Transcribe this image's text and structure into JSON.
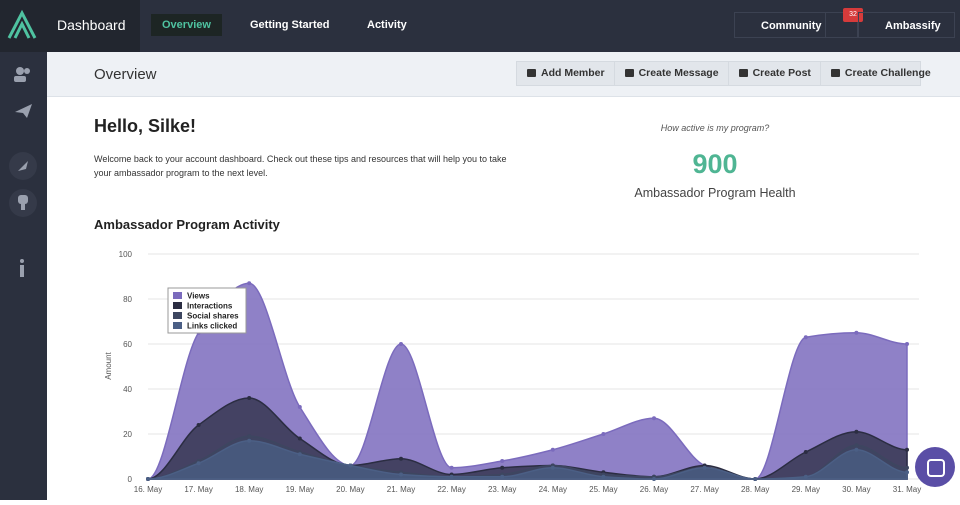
{
  "topbar": {
    "brand": "Dashboard",
    "tabs": [
      "Overview",
      "Getting Started",
      "Activity"
    ],
    "community": "Community",
    "notifications": "32",
    "user": "Ambassify"
  },
  "subheader": {
    "title": "Overview",
    "actions": [
      "Add Member",
      "Create Message",
      "Create Post",
      "Create Challenge"
    ]
  },
  "welcome": {
    "title": "Hello, Silke!",
    "text": "Welcome back to your account dashboard. Check out these tips and resources that will help you to take your ambassador program to the next level."
  },
  "health": {
    "question": "How active is my program?",
    "score": "900",
    "label": "Ambassador Program Health"
  },
  "chart_data": {
    "type": "area",
    "title": "Ambassador Program Activity",
    "y_label": "Amount",
    "categories": [
      "16. May",
      "17. May",
      "18. May",
      "19. May",
      "20. May",
      "21. May",
      "22. May",
      "23. May",
      "24. May",
      "25. May",
      "26. May",
      "27. May",
      "28. May",
      "29. May",
      "30. May",
      "31. May"
    ],
    "series": [
      {
        "name": "Views",
        "color": "#7b6bbd",
        "values": [
          0,
          65,
          87,
          32,
          6,
          60,
          5,
          8,
          13,
          20,
          27,
          6,
          0,
          63,
          65,
          60
        ]
      },
      {
        "name": "Interactions",
        "color": "#2b2d42",
        "values": [
          0,
          24,
          36,
          18,
          6,
          9,
          2,
          5,
          6,
          3,
          1,
          6,
          0,
          12,
          21,
          13
        ]
      },
      {
        "name": "Social shares",
        "color": "#3d4660",
        "values": [
          0,
          8,
          19,
          12,
          6,
          3,
          1,
          2,
          6,
          2,
          1,
          5,
          0,
          1,
          15,
          5
        ]
      },
      {
        "name": "Links clicked",
        "color": "#4b5f85",
        "values": [
          0,
          7,
          17,
          11,
          6,
          2,
          1,
          1,
          5,
          1,
          0,
          5,
          0,
          1,
          13,
          3
        ]
      }
    ],
    "ylim": [
      0,
      100
    ],
    "yticks": [
      0,
      20,
      40,
      60,
      80,
      100
    ],
    "grid": true,
    "legend": "top-left"
  }
}
